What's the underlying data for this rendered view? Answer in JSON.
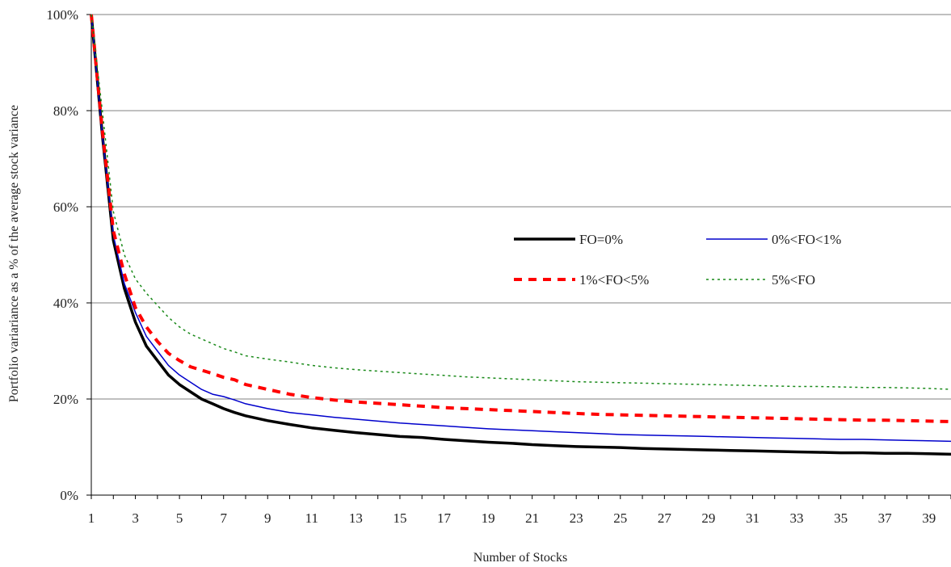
{
  "chart_data": {
    "type": "line",
    "title": "",
    "xlabel": "Number of Stocks",
    "ylabel": "Portfolio variariance as a % of the average stock variance",
    "xlim": [
      1,
      40
    ],
    "ylim": [
      0,
      100
    ],
    "x_ticks": [
      1,
      3,
      5,
      7,
      9,
      11,
      13,
      15,
      17,
      19,
      21,
      23,
      25,
      27,
      29,
      31,
      33,
      35,
      37,
      39
    ],
    "y_ticks": [
      0,
      20,
      40,
      60,
      80,
      100
    ],
    "x_tick_labels": [
      "1",
      "3",
      "5",
      "7",
      "9",
      "11",
      "13",
      "15",
      "17",
      "19",
      "21",
      "23",
      "25",
      "27",
      "29",
      "31",
      "33",
      "35",
      "37",
      "39"
    ],
    "y_tick_labels": [
      "0%",
      "20%",
      "40%",
      "60%",
      "80%",
      "100%"
    ],
    "grid": "horizontal",
    "legend_position": "center-right",
    "x": [
      1,
      1.5,
      2,
      2.5,
      3,
      3.5,
      4,
      4.5,
      5,
      5.5,
      6,
      6.5,
      7,
      7.5,
      8,
      9,
      10,
      11,
      12,
      13,
      14,
      15,
      16,
      17,
      18,
      19,
      20,
      21,
      22,
      23,
      24,
      25,
      26,
      27,
      28,
      29,
      30,
      31,
      32,
      33,
      34,
      35,
      36,
      37,
      38,
      39,
      40
    ],
    "series": [
      {
        "name": "FO=0%",
        "color": "#000000",
        "style": "solid-thick",
        "values": [
          100,
          75,
          53,
          43,
          36,
          31,
          28,
          25,
          23,
          21.5,
          20,
          19,
          18,
          17.2,
          16.5,
          15.5,
          14.7,
          14,
          13.5,
          13,
          12.6,
          12.2,
          12,
          11.6,
          11.3,
          11,
          10.8,
          10.5,
          10.3,
          10.1,
          10,
          9.9,
          9.7,
          9.6,
          9.5,
          9.4,
          9.3,
          9.2,
          9.1,
          9.0,
          8.9,
          8.8,
          8.8,
          8.7,
          8.7,
          8.6,
          8.5
        ]
      },
      {
        "name": "0%<FO<1%",
        "color": "#0000cc",
        "style": "solid-thin",
        "values": [
          100,
          75,
          54,
          44,
          38,
          33,
          30,
          27,
          25,
          23.5,
          22,
          21,
          20.5,
          19.8,
          19,
          18,
          17.2,
          16.7,
          16.2,
          15.8,
          15.4,
          15,
          14.7,
          14.4,
          14.1,
          13.8,
          13.6,
          13.4,
          13.2,
          13,
          12.8,
          12.6,
          12.5,
          12.4,
          12.3,
          12.2,
          12.1,
          12,
          11.9,
          11.8,
          11.7,
          11.6,
          11.6,
          11.5,
          11.4,
          11.3,
          11.2
        ]
      },
      {
        "name": "1%<FO<5%",
        "color": "#ff0000",
        "style": "dashed",
        "values": [
          100,
          76,
          55,
          46,
          39,
          35,
          32,
          29.5,
          28,
          26.7,
          26,
          25.3,
          24.5,
          24,
          23,
          22,
          21,
          20.3,
          19.8,
          19.4,
          19.1,
          18.8,
          18.5,
          18.2,
          18,
          17.8,
          17.6,
          17.4,
          17.2,
          17,
          16.8,
          16.7,
          16.6,
          16.5,
          16.4,
          16.3,
          16.2,
          16.1,
          16,
          15.9,
          15.8,
          15.7,
          15.6,
          15.6,
          15.5,
          15.4,
          15.3
        ]
      },
      {
        "name": "5%<FO",
        "color": "#1a8a1a",
        "style": "dotted",
        "values": [
          100,
          80,
          59,
          50,
          45,
          42,
          39.5,
          37,
          35,
          33.5,
          32.5,
          31.5,
          30.5,
          29.8,
          29,
          28.3,
          27.7,
          27,
          26.5,
          26.1,
          25.8,
          25.5,
          25.2,
          24.9,
          24.6,
          24.4,
          24.2,
          24,
          23.8,
          23.6,
          23.5,
          23.4,
          23.3,
          23.2,
          23.1,
          23,
          22.9,
          22.8,
          22.7,
          22.6,
          22.6,
          22.5,
          22.4,
          22.4,
          22.3,
          22.2,
          22.0
        ]
      }
    ]
  }
}
